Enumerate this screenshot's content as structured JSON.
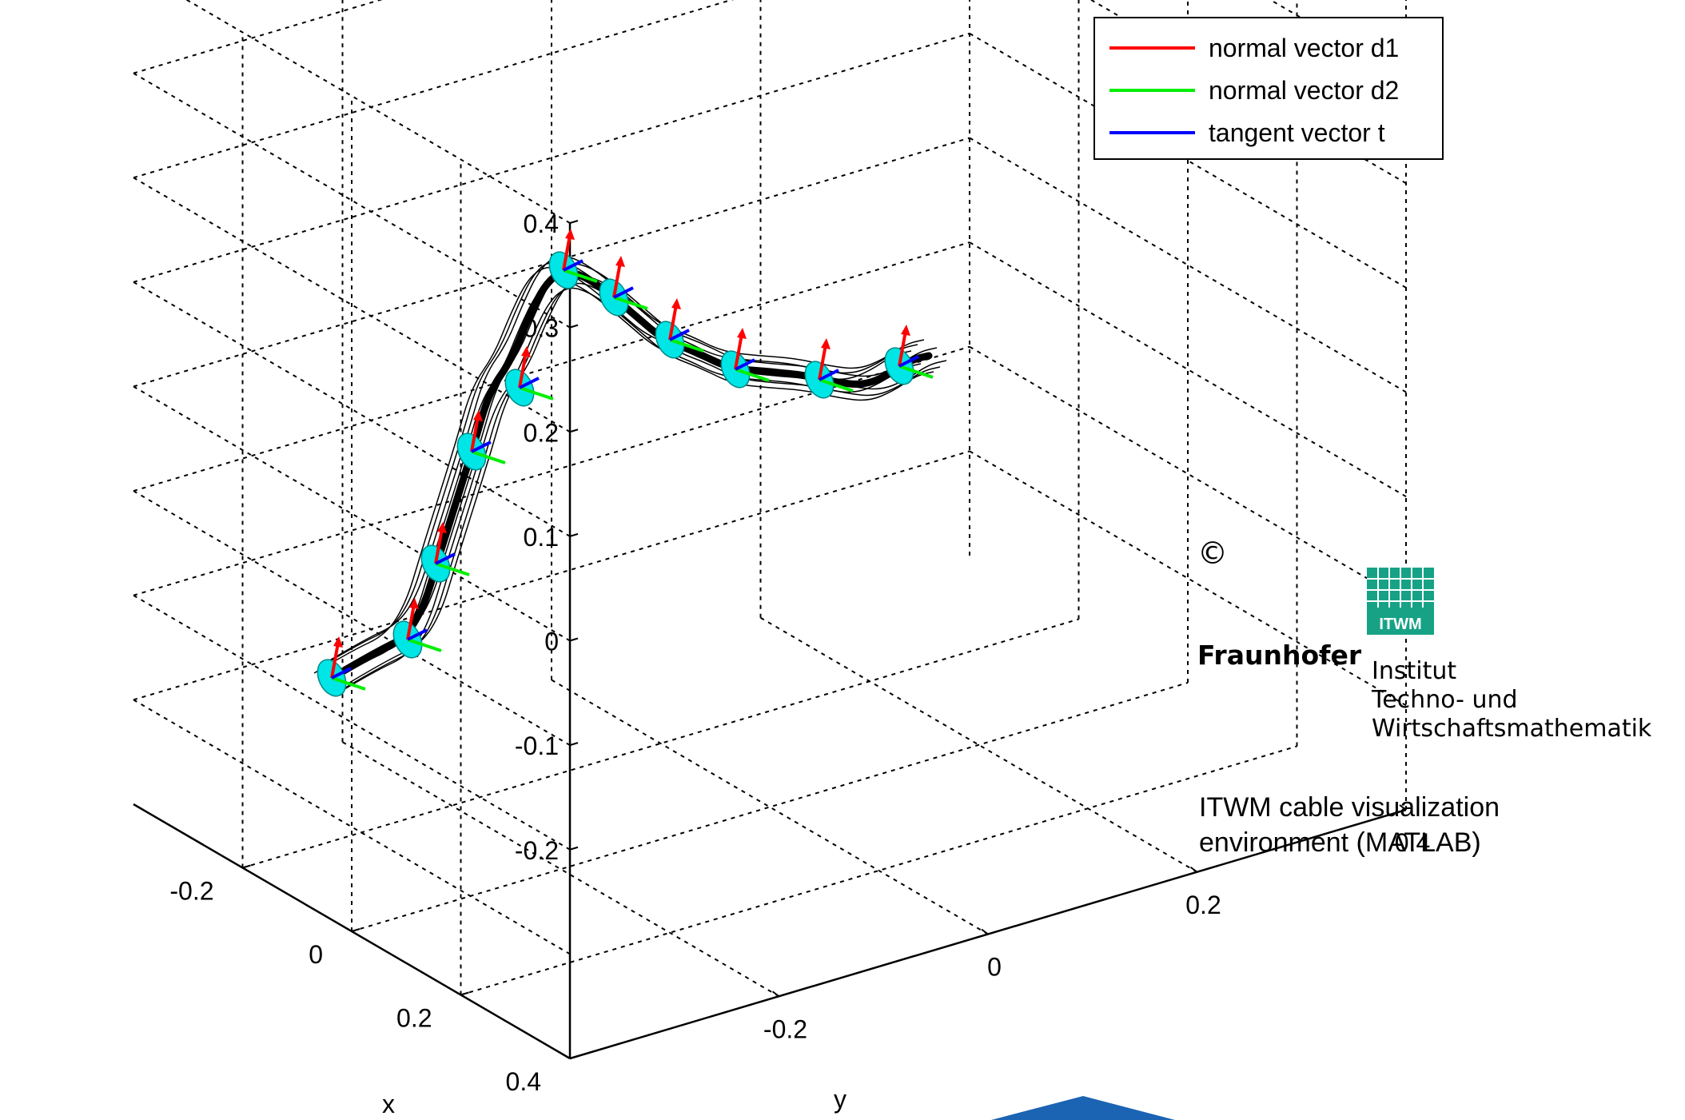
{
  "chart_data": {
    "type": "line3d",
    "axes": {
      "x": {
        "label": "x",
        "ticks": [
          "-0.2",
          "0",
          "0.2",
          "0.4"
        ],
        "tick_values": [
          -0.2,
          0,
          0.2,
          0.4
        ]
      },
      "y": {
        "label": "y",
        "ticks": [
          "-0.2",
          "0",
          "0.2",
          "0.4"
        ],
        "tick_values": [
          -0.2,
          0,
          0.2,
          0.4
        ]
      },
      "z": {
        "label": "",
        "ticks": [
          "0.4",
          "0.3",
          "0.2",
          "0.1",
          "0",
          "-0.1",
          "-0.2"
        ],
        "tick_values": [
          0.4,
          0.3,
          0.2,
          0.1,
          0,
          -0.1,
          -0.2
        ]
      }
    },
    "grid": true,
    "legend": {
      "placement": "top-right",
      "entries": [
        {
          "label": "normal vector  d1",
          "color": "#ff0000"
        },
        {
          "label": "normal vector  d2",
          "color": "#00ee00"
        },
        {
          "label": "tangent vector t",
          "color": "#0000ff"
        }
      ]
    },
    "series": [
      {
        "name": "normal vector  d1",
        "color": "#ff0000"
      },
      {
        "name": "normal vector  d2",
        "color": "#00ee00"
      },
      {
        "name": "tangent vector t",
        "color": "#0000ff"
      }
    ],
    "cable_color": "#000000",
    "cross_section_color": "#00e5e5"
  },
  "annotation": {
    "copyright": "©",
    "logo_text": "ITWM",
    "org_name": "Fraunhofer",
    "institute_lines": [
      "Institut",
      "Techno- und",
      "Wirtschaftsmathematik"
    ],
    "caption_lines": [
      "ITWM cable visualization",
      "environment (MATLAB)"
    ]
  },
  "colors": {
    "logo_green": "#17a286",
    "bottom_shape": "#1b63b3"
  }
}
